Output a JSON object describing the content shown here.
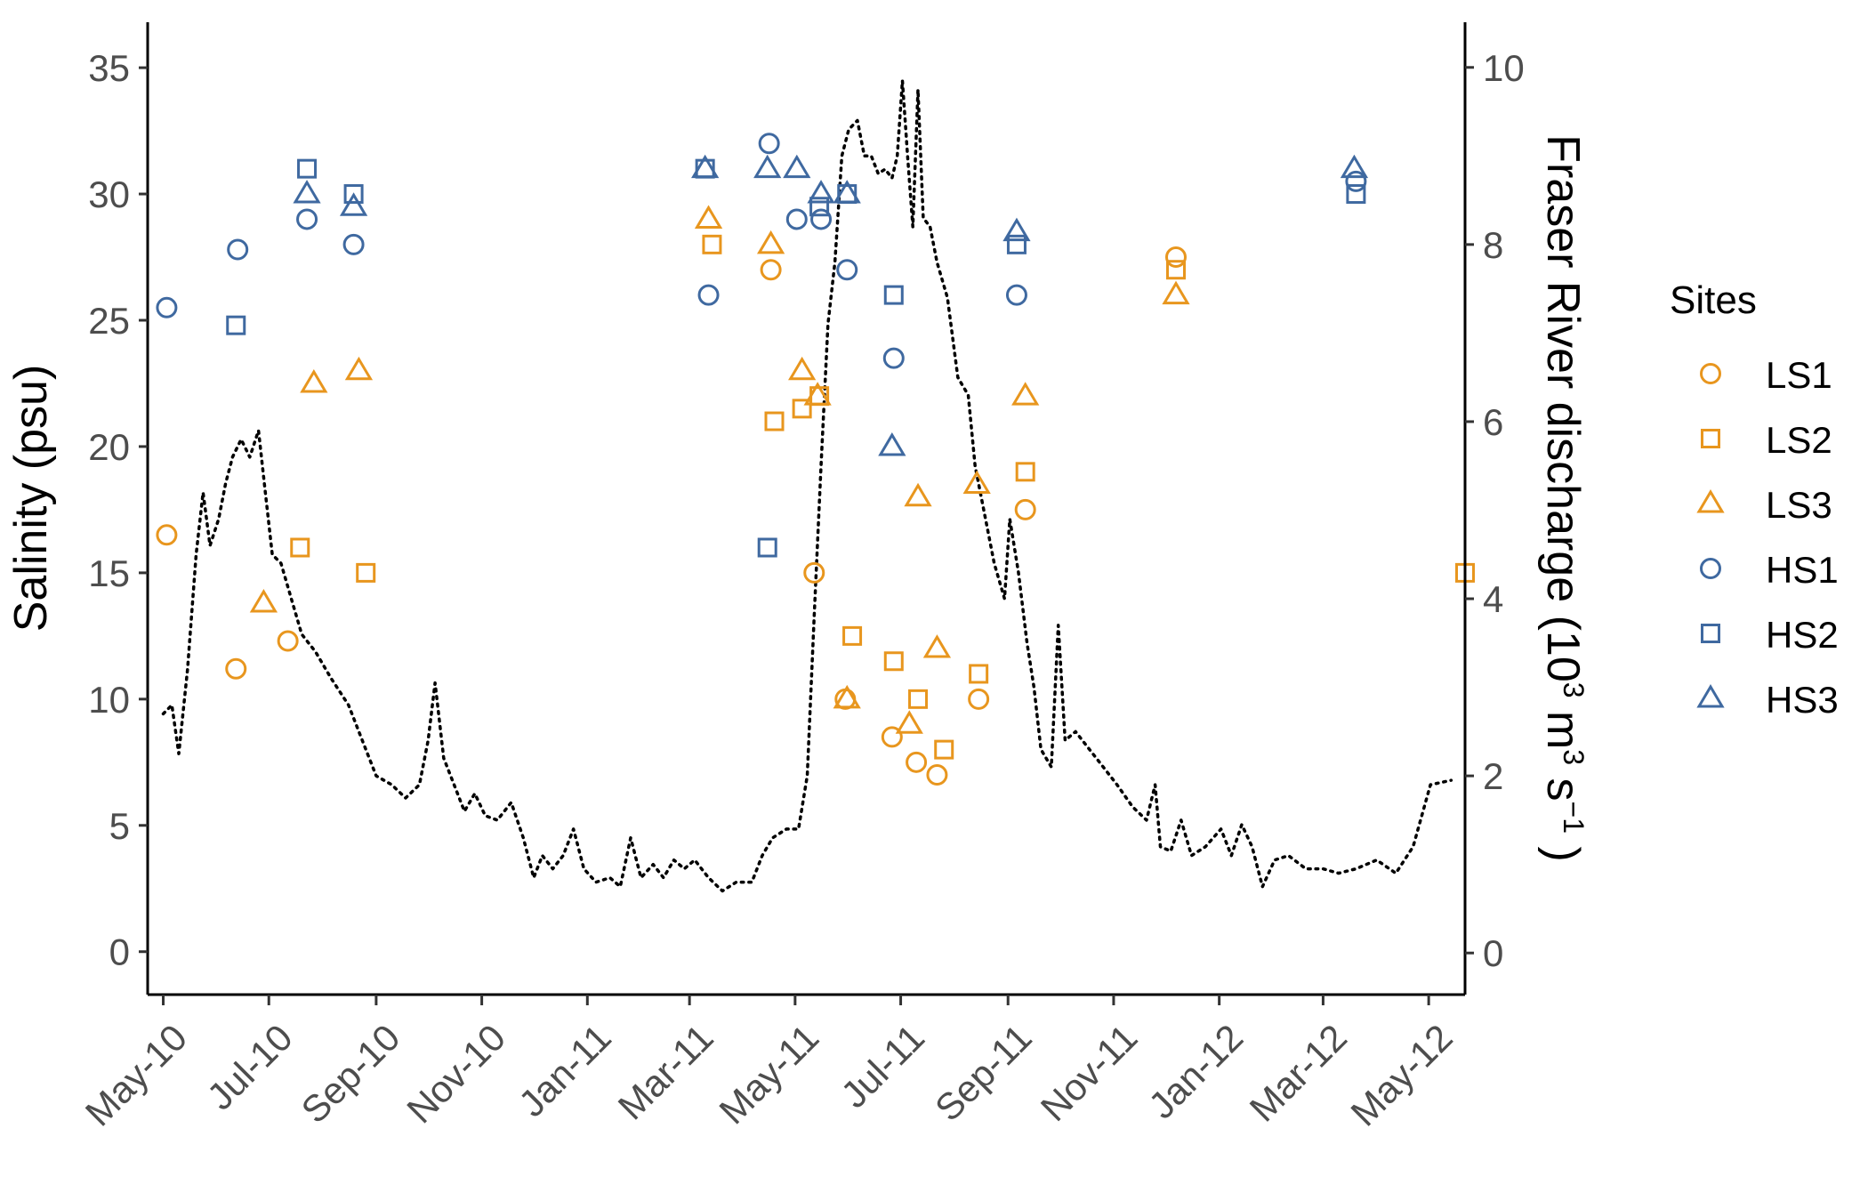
{
  "chart_data": {
    "type": "scatter",
    "xlabel": "",
    "ylabel": "Salinity (psu)",
    "y2label": {
      "main": "Fraser River discharge (10",
      "sup1": "3",
      "mid": " m",
      "sup2": "3",
      "mid2": " s",
      "sup3": "−1",
      "end": " )"
    },
    "legend_title": "Sites",
    "legend_position": "right",
    "grid": false,
    "x_ticks": [
      "May-10",
      "Jul-10",
      "Sep-10",
      "Nov-10",
      "Jan-11",
      "Mar-11",
      "May-11",
      "Jul-11",
      "Sep-11",
      "Nov-11",
      "Jan-12",
      "Mar-12",
      "May-12"
    ],
    "xlim": [
      "2010-04-22",
      "2012-05-22"
    ],
    "ylim": [
      -1.7,
      36.8
    ],
    "y_ticks": [
      0,
      5,
      10,
      15,
      20,
      25,
      30,
      35
    ],
    "y2lim": [
      -0.47,
      10.51
    ],
    "y2_ticks": [
      0,
      2,
      4,
      6,
      8,
      10
    ],
    "colors": {
      "LS": "#E8961E",
      "HS": "#3F69A0",
      "discharge": "#000000"
    },
    "series": [
      {
        "name": "LS1",
        "shape": "circle",
        "color": "#E8961E",
        "points": [
          [
            "2010-05-03",
            16.5
          ],
          [
            "2010-06-12",
            11.2
          ],
          [
            "2010-07-12",
            12.3
          ],
          [
            "2011-05-12",
            15.0
          ],
          [
            "2011-05-30",
            10.0
          ],
          [
            "2011-06-26",
            8.5
          ],
          [
            "2011-07-10",
            7.5
          ],
          [
            "2011-07-22",
            7.0
          ],
          [
            "2011-08-15",
            10.0
          ],
          [
            "2011-09-11",
            17.5
          ],
          [
            "2011-12-07",
            27.5
          ],
          [
            "2011-04-17",
            27.0
          ]
        ]
      },
      {
        "name": "LS2",
        "shape": "square",
        "color": "#E8961E",
        "points": [
          [
            "2010-07-19",
            16.0
          ],
          [
            "2010-08-26",
            15.0
          ],
          [
            "2011-03-14",
            28.0
          ],
          [
            "2011-04-19",
            21.0
          ],
          [
            "2011-05-05",
            21.5
          ],
          [
            "2011-05-15",
            22.0
          ],
          [
            "2011-06-03",
            12.5
          ],
          [
            "2011-06-27",
            11.5
          ],
          [
            "2011-07-11",
            10.0
          ],
          [
            "2011-07-26",
            8.0
          ],
          [
            "2011-08-15",
            11.0
          ],
          [
            "2011-09-11",
            19.0
          ],
          [
            "2011-12-07",
            27.0
          ],
          [
            "2012-05-22",
            15.0
          ]
        ]
      },
      {
        "name": "LS3",
        "shape": "triangle",
        "color": "#E8961E",
        "points": [
          [
            "2010-06-28",
            13.8
          ],
          [
            "2010-07-27",
            22.5
          ],
          [
            "2010-08-22",
            23.0
          ],
          [
            "2011-03-12",
            29.0
          ],
          [
            "2011-04-17",
            28.0
          ],
          [
            "2011-05-05",
            23.0
          ],
          [
            "2011-05-14",
            22.0
          ],
          [
            "2011-05-31",
            10.0
          ],
          [
            "2011-07-06",
            9.0
          ],
          [
            "2011-07-11",
            18.0
          ],
          [
            "2011-07-22",
            12.0
          ],
          [
            "2011-08-14",
            18.5
          ],
          [
            "2011-09-11",
            22.0
          ],
          [
            "2011-12-07",
            26.0
          ]
        ]
      },
      {
        "name": "HS1",
        "shape": "circle",
        "color": "#3F69A0",
        "points": [
          [
            "2010-05-03",
            25.5
          ],
          [
            "2010-06-13",
            27.8
          ],
          [
            "2010-07-23",
            29.0
          ],
          [
            "2010-08-19",
            28.0
          ],
          [
            "2011-03-12",
            26.0
          ],
          [
            "2011-04-16",
            32.0
          ],
          [
            "2011-05-02",
            29.0
          ],
          [
            "2011-05-16",
            29.0
          ],
          [
            "2011-05-31",
            27.0
          ],
          [
            "2011-06-27",
            23.5
          ],
          [
            "2011-09-06",
            26.0
          ],
          [
            "2012-03-20",
            30.5
          ]
        ]
      },
      {
        "name": "HS2",
        "shape": "square",
        "color": "#3F69A0",
        "points": [
          [
            "2010-06-12",
            24.8
          ],
          [
            "2010-07-23",
            31.0
          ],
          [
            "2010-08-19",
            30.0
          ],
          [
            "2011-03-10",
            31.0
          ],
          [
            "2011-04-15",
            16.0
          ],
          [
            "2011-05-15",
            29.5
          ],
          [
            "2011-05-31",
            30.0
          ],
          [
            "2011-06-27",
            26.0
          ],
          [
            "2011-09-06",
            28.0
          ],
          [
            "2012-03-20",
            30.0
          ]
        ]
      },
      {
        "name": "HS3",
        "shape": "triangle",
        "color": "#3F69A0",
        "points": [
          [
            "2010-07-23",
            30.0
          ],
          [
            "2010-08-19",
            29.5
          ],
          [
            "2011-03-10",
            31.0
          ],
          [
            "2011-04-15",
            31.0
          ],
          [
            "2011-05-02",
            31.0
          ],
          [
            "2011-05-16",
            30.0
          ],
          [
            "2011-05-31",
            30.0
          ],
          [
            "2011-06-26",
            20.0
          ],
          [
            "2011-09-06",
            28.5
          ],
          [
            "2012-03-19",
            31.0
          ]
        ]
      }
    ],
    "discharge": {
      "name": "Fraser River discharge",
      "style": "dotted",
      "points": [
        [
          "2010-05-01",
          2.7
        ],
        [
          "2010-05-06",
          2.8
        ],
        [
          "2010-05-10",
          2.25
        ],
        [
          "2010-05-15",
          3.2
        ],
        [
          "2010-05-20",
          4.5
        ],
        [
          "2010-05-24",
          5.2
        ],
        [
          "2010-05-28",
          4.6
        ],
        [
          "2010-06-02",
          4.9
        ],
        [
          "2010-06-06",
          5.3
        ],
        [
          "2010-06-10",
          5.6
        ],
        [
          "2010-06-15",
          5.8
        ],
        [
          "2010-06-20",
          5.6
        ],
        [
          "2010-06-25",
          5.9
        ],
        [
          "2010-06-29",
          5.2
        ],
        [
          "2010-07-03",
          4.5
        ],
        [
          "2010-07-08",
          4.4
        ],
        [
          "2010-07-14",
          4.0
        ],
        [
          "2010-07-20",
          3.6
        ],
        [
          "2010-07-28",
          3.4
        ],
        [
          "2010-08-06",
          3.1
        ],
        [
          "2010-08-16",
          2.8
        ],
        [
          "2010-08-24",
          2.4
        ],
        [
          "2010-09-01",
          2.0
        ],
        [
          "2010-09-10",
          1.9
        ],
        [
          "2010-09-18",
          1.75
        ],
        [
          "2010-09-26",
          1.9
        ],
        [
          "2010-10-01",
          2.4
        ],
        [
          "2010-10-05",
          3.05
        ],
        [
          "2010-10-10",
          2.2
        ],
        [
          "2010-10-16",
          1.9
        ],
        [
          "2010-10-22",
          1.6
        ],
        [
          "2010-10-28",
          1.8
        ],
        [
          "2010-11-03",
          1.55
        ],
        [
          "2010-11-10",
          1.5
        ],
        [
          "2010-11-18",
          1.7
        ],
        [
          "2010-11-25",
          1.3
        ],
        [
          "2010-12-01",
          0.85
        ],
        [
          "2010-12-06",
          1.1
        ],
        [
          "2010-12-12",
          0.95
        ],
        [
          "2010-12-18",
          1.1
        ],
        [
          "2010-12-24",
          1.4
        ],
        [
          "2010-12-30",
          0.95
        ],
        [
          "2011-01-06",
          0.8
        ],
        [
          "2011-01-14",
          0.85
        ],
        [
          "2011-01-20",
          0.75
        ],
        [
          "2011-01-26",
          1.3
        ],
        [
          "2011-02-01",
          0.85
        ],
        [
          "2011-02-08",
          1.0
        ],
        [
          "2011-02-14",
          0.85
        ],
        [
          "2011-02-20",
          1.05
        ],
        [
          "2011-02-26",
          0.95
        ],
        [
          "2011-03-04",
          1.05
        ],
        [
          "2011-03-12",
          0.85
        ],
        [
          "2011-03-20",
          0.7
        ],
        [
          "2011-03-28",
          0.8
        ],
        [
          "2011-04-06",
          0.8
        ],
        [
          "2011-04-12",
          1.1
        ],
        [
          "2011-04-18",
          1.3
        ],
        [
          "2011-04-26",
          1.4
        ],
        [
          "2011-05-03",
          1.4
        ],
        [
          "2011-05-08",
          2.0
        ],
        [
          "2011-05-12",
          3.8
        ],
        [
          "2011-05-16",
          5.5
        ],
        [
          "2011-05-20",
          7.1
        ],
        [
          "2011-05-24",
          7.8
        ],
        [
          "2011-05-28",
          9.0
        ],
        [
          "2011-06-01",
          9.3
        ],
        [
          "2011-06-06",
          9.4
        ],
        [
          "2011-06-10",
          9.0
        ],
        [
          "2011-06-14",
          9.0
        ],
        [
          "2011-06-18",
          8.8
        ],
        [
          "2011-06-22",
          8.85
        ],
        [
          "2011-06-26",
          8.75
        ],
        [
          "2011-06-29",
          9.0
        ],
        [
          "2011-07-02",
          9.85
        ],
        [
          "2011-07-05",
          9.0
        ],
        [
          "2011-07-08",
          8.2
        ],
        [
          "2011-07-11",
          9.75
        ],
        [
          "2011-07-14",
          8.3
        ],
        [
          "2011-07-18",
          8.2
        ],
        [
          "2011-07-22",
          7.8
        ],
        [
          "2011-07-28",
          7.4
        ],
        [
          "2011-08-03",
          6.5
        ],
        [
          "2011-08-09",
          6.3
        ],
        [
          "2011-08-13",
          5.5
        ],
        [
          "2011-08-18",
          5.0
        ],
        [
          "2011-08-24",
          4.4
        ],
        [
          "2011-08-30",
          4.0
        ],
        [
          "2011-09-02",
          4.9
        ],
        [
          "2011-09-07",
          4.3
        ],
        [
          "2011-09-12",
          3.5
        ],
        [
          "2011-09-16",
          3.0
        ],
        [
          "2011-09-20",
          2.3
        ],
        [
          "2011-09-26",
          2.1
        ],
        [
          "2011-09-30",
          3.7
        ],
        [
          "2011-10-04",
          2.4
        ],
        [
          "2011-10-10",
          2.5
        ],
        [
          "2011-10-18",
          2.3
        ],
        [
          "2011-10-26",
          2.1
        ],
        [
          "2011-11-03",
          1.9
        ],
        [
          "2011-11-12",
          1.65
        ],
        [
          "2011-11-20",
          1.5
        ],
        [
          "2011-11-25",
          1.9
        ],
        [
          "2011-11-28",
          1.2
        ],
        [
          "2011-12-04",
          1.15
        ],
        [
          "2011-12-10",
          1.5
        ],
        [
          "2011-12-16",
          1.1
        ],
        [
          "2011-12-24",
          1.2
        ],
        [
          "2012-01-02",
          1.4
        ],
        [
          "2012-01-08",
          1.1
        ],
        [
          "2012-01-14",
          1.45
        ],
        [
          "2012-01-20",
          1.2
        ],
        [
          "2012-01-26",
          0.75
        ],
        [
          "2012-02-02",
          1.05
        ],
        [
          "2012-02-10",
          1.1
        ],
        [
          "2012-02-20",
          0.95
        ],
        [
          "2012-03-01",
          0.95
        ],
        [
          "2012-03-10",
          0.9
        ],
        [
          "2012-03-20",
          0.95
        ],
        [
          "2012-04-01",
          1.05
        ],
        [
          "2012-04-12",
          0.9
        ],
        [
          "2012-04-22",
          1.2
        ],
        [
          "2012-05-02",
          1.9
        ],
        [
          "2012-05-14",
          1.95
        ]
      ]
    }
  }
}
